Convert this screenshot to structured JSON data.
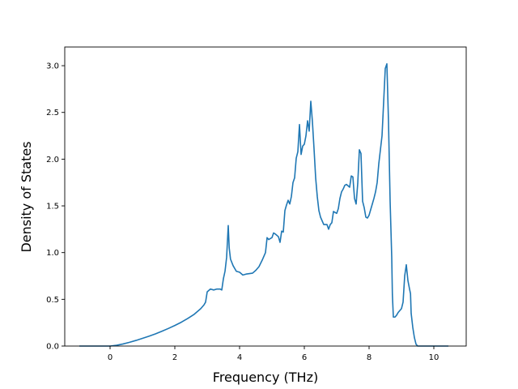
{
  "chart_data": {
    "type": "line",
    "title": "",
    "xlabel": "Frequency (THz)",
    "ylabel": "Density of States",
    "xlim": [
      -1.4,
      11.0
    ],
    "ylim": [
      0.0,
      3.2
    ],
    "x_ticks": [
      0,
      2,
      4,
      6,
      8,
      10
    ],
    "y_ticks": [
      0.0,
      0.5,
      1.0,
      1.5,
      2.0,
      2.5,
      3.0
    ],
    "x_tick_labels": [
      "0",
      "2",
      "4",
      "6",
      "8",
      "10"
    ],
    "y_tick_labels": [
      "0.0",
      "0.5",
      "1.0",
      "1.5",
      "2.0",
      "2.5",
      "3.0"
    ],
    "grid": false,
    "legend": false,
    "series": [
      {
        "color": "#1f77b4",
        "x": [
          -0.95,
          -0.2,
          0.0,
          0.2,
          0.4,
          0.6,
          0.8,
          1.0,
          1.2,
          1.4,
          1.6,
          1.8,
          2.0,
          2.2,
          2.4,
          2.6,
          2.8,
          2.9,
          2.95,
          3.0,
          3.1,
          3.2,
          3.3,
          3.4,
          3.45,
          3.5,
          3.55,
          3.6,
          3.65,
          3.68,
          3.72,
          3.8,
          3.9,
          4.0,
          4.1,
          4.2,
          4.4,
          4.5,
          4.6,
          4.7,
          4.8,
          4.85,
          4.9,
          5.0,
          5.05,
          5.1,
          5.2,
          5.25,
          5.3,
          5.35,
          5.4,
          5.45,
          5.5,
          5.55,
          5.6,
          5.65,
          5.7,
          5.75,
          5.8,
          5.85,
          5.9,
          5.95,
          6.0,
          6.05,
          6.1,
          6.15,
          6.2,
          6.25,
          6.3,
          6.35,
          6.4,
          6.45,
          6.5,
          6.6,
          6.7,
          6.75,
          6.8,
          6.85,
          6.9,
          7.0,
          7.05,
          7.1,
          7.15,
          7.2,
          7.25,
          7.3,
          7.4,
          7.45,
          7.5,
          7.55,
          7.6,
          7.65,
          7.7,
          7.75,
          7.8,
          7.85,
          7.9,
          7.95,
          8.0,
          8.05,
          8.1,
          8.15,
          8.2,
          8.25,
          8.3,
          8.4,
          8.5,
          8.55,
          8.6,
          8.65,
          8.7,
          8.72,
          8.75,
          8.8,
          8.85,
          8.9,
          9.0,
          9.05,
          9.1,
          9.15,
          9.2,
          9.25,
          9.28,
          9.3,
          9.35,
          9.4,
          9.45,
          9.5,
          9.55,
          9.6,
          10.45
        ],
        "y": [
          0.0,
          0.0,
          0.0,
          0.008,
          0.022,
          0.04,
          0.06,
          0.082,
          0.105,
          0.13,
          0.158,
          0.188,
          0.22,
          0.255,
          0.295,
          0.34,
          0.4,
          0.44,
          0.47,
          0.58,
          0.61,
          0.6,
          0.61,
          0.61,
          0.6,
          0.72,
          0.8,
          0.95,
          1.29,
          1.05,
          0.93,
          0.86,
          0.8,
          0.79,
          0.76,
          0.77,
          0.78,
          0.81,
          0.85,
          0.92,
          1.0,
          1.16,
          1.14,
          1.16,
          1.21,
          1.2,
          1.17,
          1.11,
          1.23,
          1.22,
          1.45,
          1.51,
          1.56,
          1.52,
          1.6,
          1.75,
          1.8,
          2.01,
          2.08,
          2.37,
          2.05,
          2.14,
          2.16,
          2.25,
          2.41,
          2.3,
          2.62,
          2.4,
          2.11,
          1.8,
          1.6,
          1.45,
          1.38,
          1.3,
          1.3,
          1.25,
          1.3,
          1.32,
          1.44,
          1.42,
          1.47,
          1.58,
          1.65,
          1.68,
          1.72,
          1.73,
          1.7,
          1.82,
          1.81,
          1.58,
          1.52,
          1.74,
          2.1,
          2.06,
          1.55,
          1.48,
          1.38,
          1.37,
          1.4,
          1.46,
          1.52,
          1.58,
          1.65,
          1.75,
          1.95,
          2.25,
          2.97,
          3.02,
          2.4,
          1.55,
          0.95,
          0.55,
          0.31,
          0.31,
          0.33,
          0.36,
          0.4,
          0.47,
          0.75,
          0.87,
          0.7,
          0.61,
          0.56,
          0.35,
          0.2,
          0.09,
          0.02,
          0.0,
          0.0,
          0.0,
          0.0
        ]
      }
    ]
  }
}
